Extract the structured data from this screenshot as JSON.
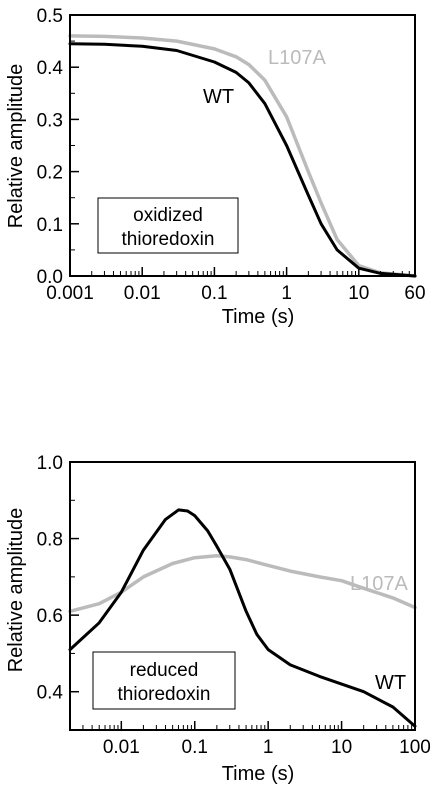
{
  "chart_data": [
    {
      "type": "line",
      "title": "",
      "xlabel": "Time (s)",
      "ylabel": "Relative amplitude",
      "xscale": "log",
      "xlim": [
        0.001,
        60
      ],
      "ylim": [
        0,
        0.5
      ],
      "xticks": [
        0.001,
        0.01,
        0.1,
        1,
        10,
        60
      ],
      "xtick_labels": [
        "0.001",
        "0.01",
        "0.1",
        "1",
        "10",
        "60"
      ],
      "yticks": [
        0,
        0.1,
        0.2,
        0.3,
        0.4,
        0.5
      ],
      "ytick_labels": [
        "0.0",
        "0.1",
        "0.2",
        "0.3",
        "0.4",
        "0.5"
      ],
      "annotation": [
        "oxidized",
        "thioredoxin"
      ],
      "grid": false,
      "series": [
        {
          "name": "WT",
          "color": "#000000",
          "x": [
            0.001,
            0.003,
            0.01,
            0.03,
            0.1,
            0.2,
            0.3,
            0.5,
            1,
            2,
            3,
            5,
            10,
            20,
            60
          ],
          "y": [
            0.445,
            0.444,
            0.44,
            0.432,
            0.41,
            0.39,
            0.37,
            0.33,
            0.25,
            0.155,
            0.1,
            0.05,
            0.015,
            0.005,
            0.0
          ]
        },
        {
          "name": "L107A",
          "color": "#bbbbbb",
          "x": [
            0.001,
            0.003,
            0.01,
            0.03,
            0.1,
            0.2,
            0.3,
            0.5,
            1,
            2,
            3,
            5,
            10,
            20,
            60
          ],
          "y": [
            0.46,
            0.459,
            0.456,
            0.45,
            0.435,
            0.42,
            0.405,
            0.375,
            0.305,
            0.2,
            0.14,
            0.07,
            0.02,
            0.006,
            0.0
          ]
        }
      ]
    },
    {
      "type": "line",
      "title": "",
      "xlabel": "Time (s)",
      "ylabel": "Relative amplitude",
      "xscale": "log",
      "xlim": [
        0.002,
        100
      ],
      "ylim": [
        0.3,
        1.0
      ],
      "xticks": [
        0.01,
        0.1,
        1,
        10,
        100
      ],
      "xtick_labels": [
        "0.01",
        "0.1",
        "1",
        "10",
        "100"
      ],
      "yticks": [
        0.4,
        0.6,
        0.8,
        1.0
      ],
      "ytick_labels": [
        "0.4",
        "0.6",
        "0.8",
        "1.0"
      ],
      "annotation": [
        "reduced",
        "thioredoxin"
      ],
      "grid": false,
      "series": [
        {
          "name": "WT",
          "color": "#000000",
          "x": [
            0.002,
            0.005,
            0.01,
            0.02,
            0.04,
            0.06,
            0.08,
            0.1,
            0.15,
            0.2,
            0.3,
            0.5,
            0.7,
            1,
            2,
            5,
            10,
            20,
            50,
            100
          ],
          "y": [
            0.51,
            0.58,
            0.66,
            0.77,
            0.85,
            0.875,
            0.872,
            0.86,
            0.82,
            0.78,
            0.72,
            0.61,
            0.55,
            0.51,
            0.47,
            0.44,
            0.42,
            0.4,
            0.36,
            0.31
          ]
        },
        {
          "name": "L107A",
          "color": "#bbbbbb",
          "x": [
            0.002,
            0.005,
            0.01,
            0.02,
            0.05,
            0.1,
            0.2,
            0.3,
            0.5,
            1,
            2,
            5,
            10,
            20,
            50,
            100
          ],
          "y": [
            0.61,
            0.63,
            0.66,
            0.7,
            0.735,
            0.75,
            0.755,
            0.752,
            0.745,
            0.73,
            0.715,
            0.7,
            0.69,
            0.67,
            0.645,
            0.62
          ]
        }
      ]
    }
  ]
}
